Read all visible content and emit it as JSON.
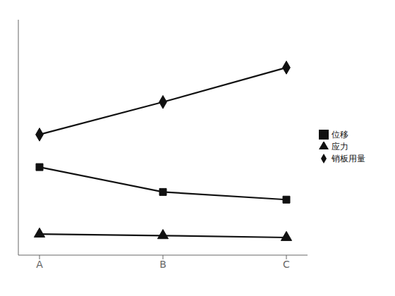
{
  "chart_data": {
    "type": "line",
    "categories": [
      "A",
      "B",
      "C"
    ],
    "series": [
      {
        "name": "销板用量",
        "color": "#111111",
        "marker": "diamond",
        "values": [
          5.5,
          7.2,
          9.0
        ]
      },
      {
        "name": "位移",
        "color": "#111111",
        "marker": "square",
        "values": [
          3.8,
          2.5,
          2.1
        ]
      },
      {
        "name": "应力",
        "color": "#111111",
        "marker": "triangle",
        "values": [
          0.3,
          0.22,
          0.12
        ]
      }
    ],
    "ylim": [
      -0.8,
      11.5
    ],
    "yticks": [],
    "legend": "right",
    "tick_labels": "x",
    "grid": false
  }
}
